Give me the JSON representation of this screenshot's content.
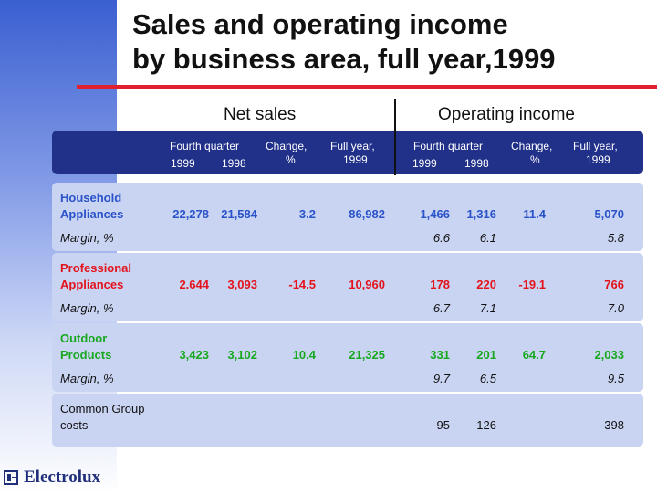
{
  "title": {
    "line1": "Sales and operating income",
    "line2": "by business area, full year,1999"
  },
  "sections": {
    "net_sales": "Net sales",
    "operating_income": "Operating income"
  },
  "columns": {
    "ns_fourth_quarter": "Fourth quarter",
    "ns_y1999": "1999",
    "ns_y1998": "1998",
    "ns_change": "Change,",
    "ns_change_unit": "%",
    "ns_full_year": "Full year,",
    "ns_full_year_y": "1999",
    "oi_fourth_quarter": "Fourth quarter",
    "oi_y1999": "1999",
    "oi_y1998": "1998",
    "oi_change": "Change,",
    "oi_change_unit": "%",
    "oi_full_year": "Full year,",
    "oi_full_year_y": "1999"
  },
  "rows": [
    {
      "name1": "Household",
      "name2": "Appliances",
      "color": "#2a52c9",
      "ns_q4_1999": "22,278",
      "ns_q4_1998": "21,584",
      "ns_change": "3.2",
      "ns_full_year": "86,982",
      "oi_q4_1999": "1,466",
      "oi_q4_1998": "1,316",
      "oi_change": "11.4",
      "oi_full_year": "5,070",
      "margin_label": "Margin, %",
      "m_q4_1999": "6.6",
      "m_q4_1998": "6.1",
      "m_full_year": "5.8"
    },
    {
      "name1": "Professional",
      "name2": "Appliances",
      "color": "#e3131c",
      "ns_q4_1999": "2.644",
      "ns_q4_1998": "3,093",
      "ns_change": "-14.5",
      "ns_full_year": "10,960",
      "oi_q4_1999": "178",
      "oi_q4_1998": "220",
      "oi_change": "-19.1",
      "oi_full_year": "766",
      "margin_label": "Margin, %",
      "m_q4_1999": "6.7",
      "m_q4_1998": "7.1",
      "m_full_year": "7.0"
    },
    {
      "name1": "Outdoor",
      "name2": "Products",
      "color": "#18a81f",
      "ns_q4_1999": "3,423",
      "ns_q4_1998": "3,102",
      "ns_change": "10.4",
      "ns_full_year": "21,325",
      "oi_q4_1999": "331",
      "oi_q4_1998": "201",
      "oi_change": "64.7",
      "oi_full_year": "2,033",
      "margin_label": "Margin, %",
      "m_q4_1999": "9.7",
      "m_q4_1998": "6.5",
      "m_full_year": "9.5"
    }
  ],
  "common": {
    "name1": "Common Group",
    "name2": "costs",
    "oi_q4_1999": "-95",
    "oi_q4_1998": "-126",
    "oi_full_year": "-398"
  },
  "logo": {
    "text": "Electrolux",
    "icon": "electrolux-logo-icon"
  }
}
